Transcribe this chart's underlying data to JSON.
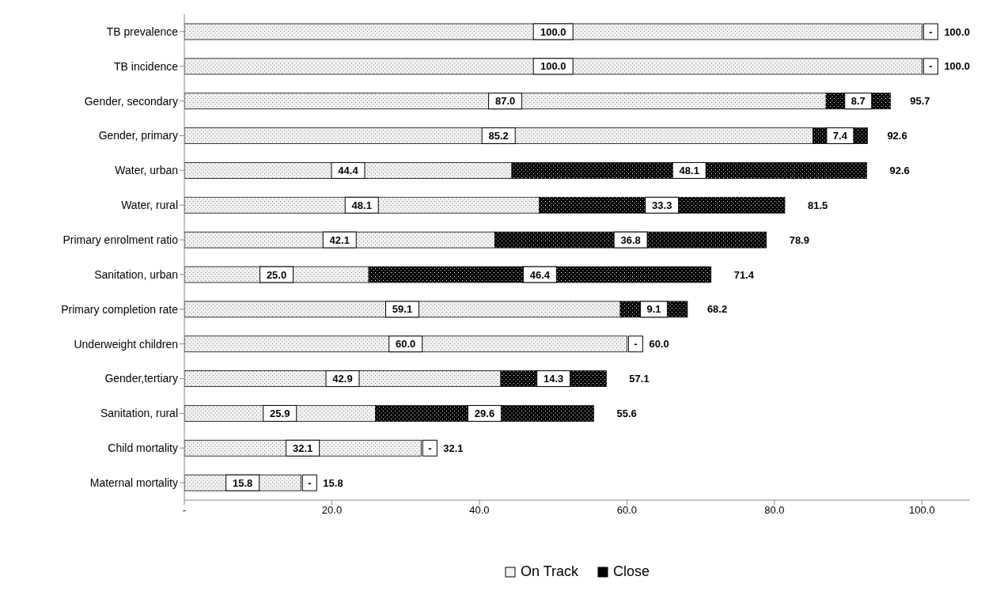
{
  "chart_data": {
    "type": "bar",
    "orientation": "horizontal",
    "stacked": true,
    "categories": [
      "TB prevalence",
      "TB incidence",
      "Gender, secondary",
      "Gender, primary",
      "Water, urban",
      "Water, rural",
      "Primary enrolment ratio",
      "Sanitation, urban",
      "Primary completion rate",
      "Underweight children",
      "Gender,tertiary",
      "Sanitation, rural",
      "Child mortality",
      "Maternal mortality"
    ],
    "series": [
      {
        "name": "On Track",
        "color": "#f2f2f2",
        "values": [
          100.0,
          100.0,
          87.0,
          85.2,
          44.4,
          48.1,
          42.1,
          25.0,
          59.1,
          60.0,
          42.9,
          25.9,
          32.1,
          15.8
        ],
        "value_labels": [
          "100.0",
          "100.0",
          "87.0",
          "85.2",
          "44.4",
          "48.1",
          "42.1",
          "25.0",
          "59.1",
          "60.0",
          "42.9",
          "25.9",
          "32.1",
          "15.8"
        ]
      },
      {
        "name": "Close",
        "color": "#000000",
        "values": [
          0,
          0,
          8.7,
          7.4,
          48.1,
          33.3,
          36.8,
          46.4,
          9.1,
          0,
          14.3,
          29.6,
          0,
          0
        ],
        "value_labels": [
          "-",
          "-",
          "8.7",
          "7.4",
          "48.1",
          "33.3",
          "36.8",
          "46.4",
          "9.1",
          "-",
          "14.3",
          "29.6",
          "-",
          "-"
        ]
      }
    ],
    "totals": [
      "100.0",
      "100.0",
      "95.7",
      "92.6",
      "92.6",
      "81.5",
      "78.9",
      "71.4",
      "68.2",
      "60.0",
      "57.1",
      "55.6",
      "32.1",
      "15.8"
    ],
    "xlim": [
      0,
      106.5
    ],
    "xticks": [
      {
        "value": 0,
        "label": "-"
      },
      {
        "value": 20,
        "label": "20.0"
      },
      {
        "value": 40,
        "label": "40.0"
      },
      {
        "value": 60,
        "label": "60.0"
      },
      {
        "value": 80,
        "label": "80.0"
      },
      {
        "value": 100,
        "label": "100.0"
      }
    ],
    "grid": false,
    "legend": "bottom"
  }
}
